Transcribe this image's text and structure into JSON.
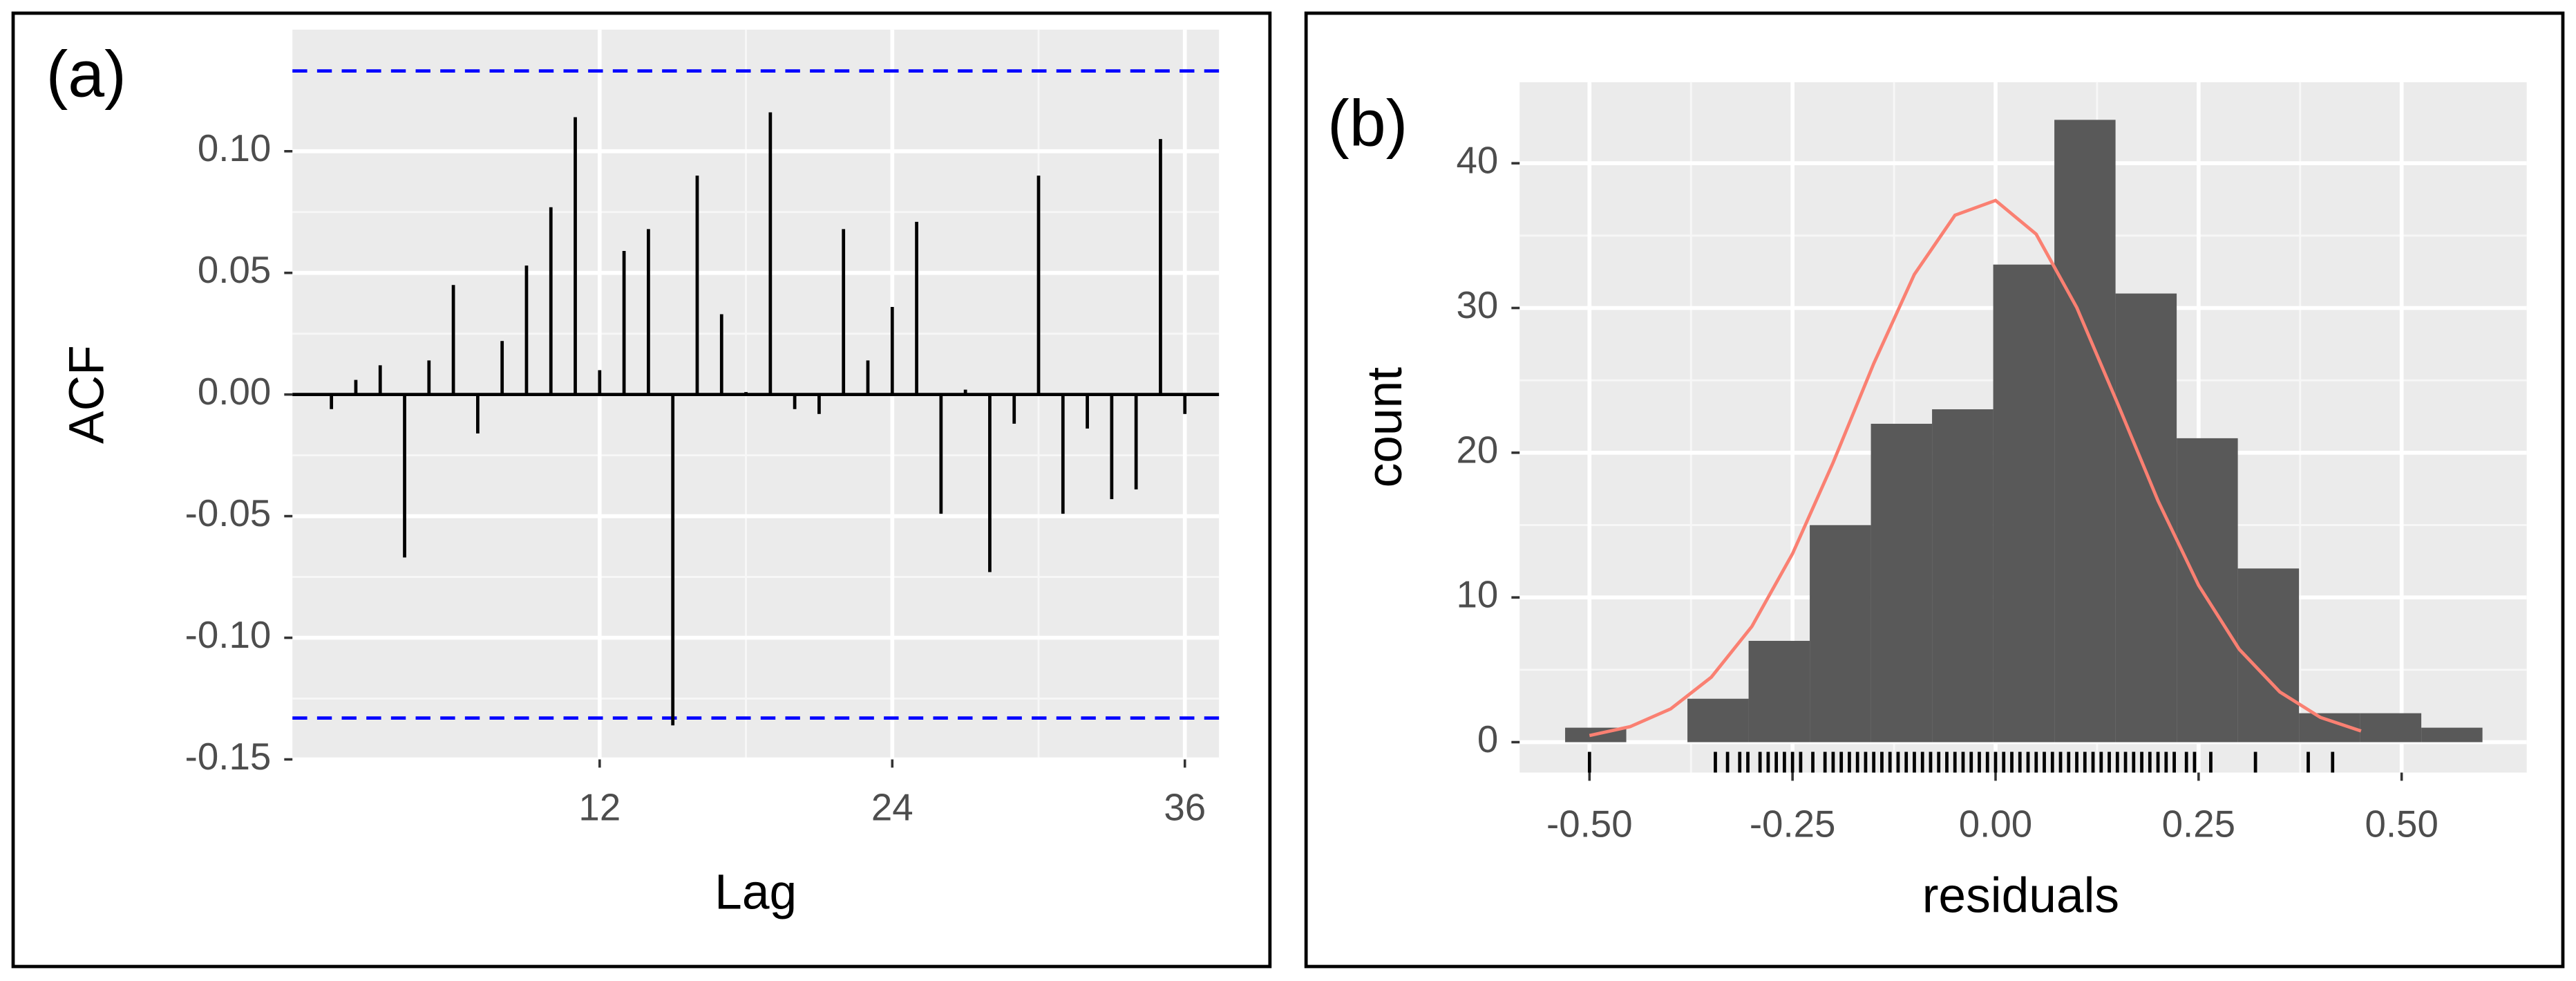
{
  "chart_data": [
    {
      "type": "stem",
      "panel_label": "(a)",
      "xlabel": "Lag",
      "ylabel": "ACF",
      "x": [
        1,
        2,
        3,
        4,
        5,
        6,
        7,
        8,
        9,
        10,
        11,
        12,
        13,
        14,
        15,
        16,
        17,
        18,
        19,
        20,
        21,
        22,
        23,
        24,
        25,
        26,
        27,
        28,
        29,
        30,
        31,
        32,
        33,
        34,
        35,
        36
      ],
      "values": [
        -0.006,
        0.006,
        0.012,
        -0.067,
        0.014,
        0.045,
        -0.016,
        0.022,
        0.053,
        0.077,
        0.114,
        0.01,
        0.059,
        0.068,
        -0.136,
        0.09,
        0.033,
        0.001,
        0.116,
        -0.006,
        -0.008,
        0.068,
        0.014,
        0.036,
        0.071,
        -0.049,
        0.002,
        -0.073,
        -0.012,
        0.09,
        -0.049,
        -0.014,
        -0.043,
        -0.039,
        0.105,
        -0.008
      ],
      "color": "#000000",
      "hlines": [
        0.133,
        -0.133
      ],
      "hline_color": "#0000ff",
      "xlim": [
        -0.6,
        37.4
      ],
      "ylim": [
        -0.15,
        0.15
      ],
      "xticks": [
        12,
        24,
        36
      ],
      "yticks": [
        {
          "value": -0.15,
          "label": "-0.15"
        },
        {
          "value": -0.1,
          "label": "-0.10"
        },
        {
          "value": -0.05,
          "label": "-0.05"
        },
        {
          "value": 0,
          "label": "0.00"
        },
        {
          "value": 0.05,
          "label": "0.05"
        },
        {
          "value": 0.1,
          "label": "0.10"
        }
      ],
      "grid": true
    },
    {
      "type": "histogram",
      "panel_label": "(b)",
      "xlabel": "residuals",
      "ylabel": "count",
      "bins": [
        -0.53,
        -0.4547,
        -0.3794,
        -0.3041,
        -0.2288,
        -0.1535,
        -0.0782,
        -0.0029,
        0.0724,
        0.1477,
        0.223,
        0.2983,
        0.3736,
        0.4489,
        0.5242,
        0.5995
      ],
      "values": [
        1,
        0,
        3,
        7,
        15,
        22,
        23,
        33,
        43,
        31,
        21,
        12,
        2,
        2,
        1
      ],
      "color": "#595959",
      "curve": {
        "color": "#fa8072",
        "x": [
          -0.5,
          -0.45,
          -0.4,
          -0.35,
          -0.3,
          -0.25,
          -0.2,
          -0.15,
          -0.1,
          -0.05,
          0,
          0.05,
          0.1,
          0.15,
          0.2,
          0.25,
          0.3,
          0.35,
          0.4,
          0.45
        ],
        "y": [
          0.46,
          1.07,
          2.3,
          4.49,
          8.0,
          13.02,
          19.32,
          26.16,
          32.32,
          36.41,
          37.43,
          35.1,
          30.03,
          23.44,
          16.68,
          10.84,
          6.42,
          3.47,
          1.71,
          0.77
        ]
      },
      "rug": {
        "color": "#000000",
        "values": [
          -0.5,
          -0.345,
          -0.33,
          -0.315,
          -0.305,
          -0.29,
          -0.28,
          -0.27,
          -0.26,
          -0.25,
          -0.24,
          -0.225,
          -0.21,
          -0.2,
          -0.19,
          -0.18,
          -0.17,
          -0.16,
          -0.15,
          -0.14,
          -0.13,
          -0.12,
          -0.11,
          -0.1,
          -0.09,
          -0.08,
          -0.07,
          -0.06,
          -0.05,
          -0.04,
          -0.03,
          -0.02,
          -0.01,
          0,
          0.01,
          0.02,
          0.03,
          0.04,
          0.05,
          0.06,
          0.07,
          0.08,
          0.09,
          0.1,
          0.11,
          0.12,
          0.13,
          0.14,
          0.15,
          0.16,
          0.17,
          0.18,
          0.19,
          0.2,
          0.21,
          0.22,
          0.235,
          0.245,
          0.265,
          0.32,
          0.385,
          0.415
        ]
      },
      "xlim": [
        -0.586,
        0.654
      ],
      "ylim": [
        -2.1,
        45.6
      ],
      "xticks": [
        {
          "value": -0.5,
          "label": "-0.50"
        },
        {
          "value": -0.25,
          "label": "-0.25"
        },
        {
          "value": 0,
          "label": "0.00"
        },
        {
          "value": 0.25,
          "label": "0.25"
        },
        {
          "value": 0.5,
          "label": "0.50"
        }
      ],
      "yticks": [
        0,
        10,
        20,
        30,
        40
      ],
      "grid": true
    }
  ]
}
